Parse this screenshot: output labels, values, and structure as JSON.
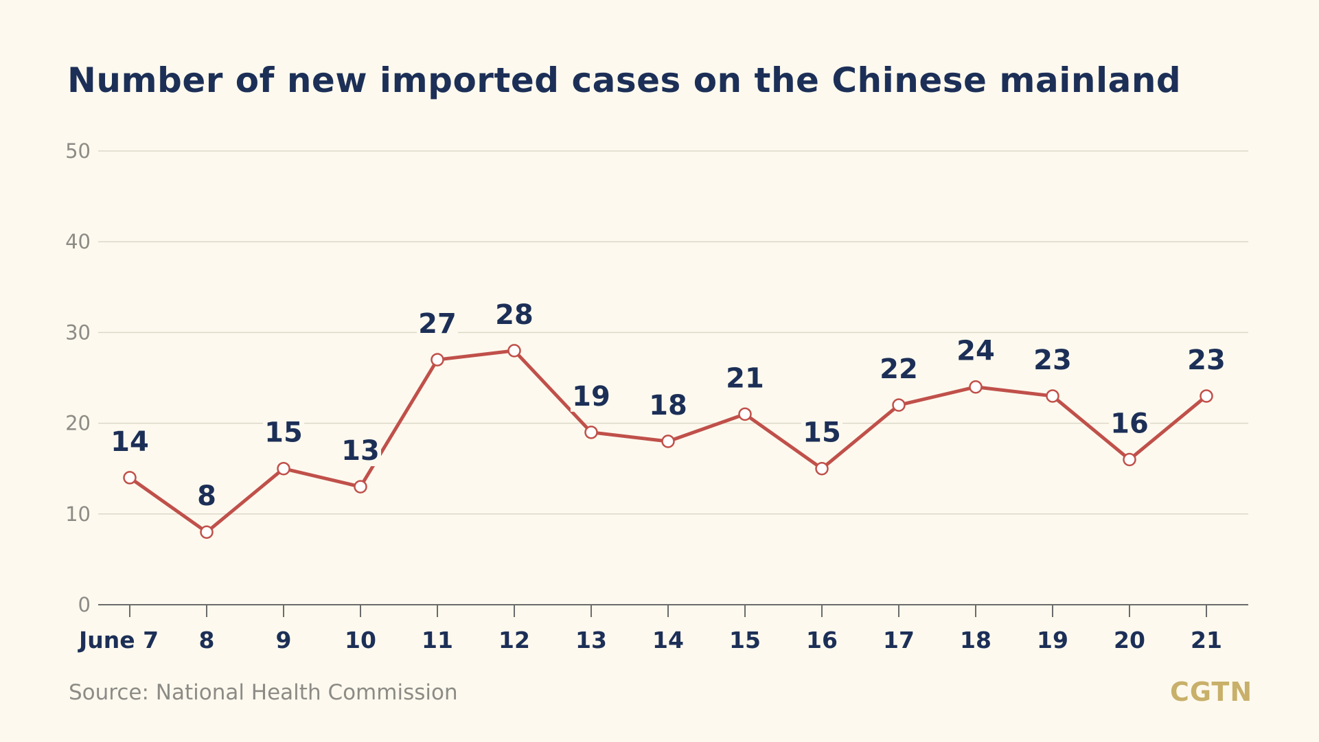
{
  "chart_data": {
    "type": "line",
    "title": "Number of new imported cases on the Chinese mainland",
    "xlabel": "",
    "ylabel": "",
    "categories": [
      "June 7",
      "8",
      "9",
      "10",
      "11",
      "12",
      "13",
      "14",
      "15",
      "16",
      "17",
      "18",
      "19",
      "20",
      "21"
    ],
    "series": [
      {
        "values": [
          14,
          8,
          15,
          13,
          27,
          28,
          19,
          18,
          21,
          15,
          22,
          24,
          23,
          16,
          23
        ],
        "color": "#c0504a"
      }
    ],
    "y_ticks": [
      0,
      10,
      20,
      30,
      40,
      50
    ],
    "ylim": [
      0,
      50
    ],
    "grid": true,
    "data_labels": true
  },
  "source": "Source: National Health Commission",
  "logo": "CGTN",
  "colors": {
    "background": "#fdf9ee",
    "title": "#1c2f57",
    "line": "#c0504a",
    "grid": "#dcd8c8",
    "axis": "#6b6b6b",
    "tick_label": "#8c8b86",
    "source": "#8c8b86",
    "logo": "#c8b06a"
  }
}
